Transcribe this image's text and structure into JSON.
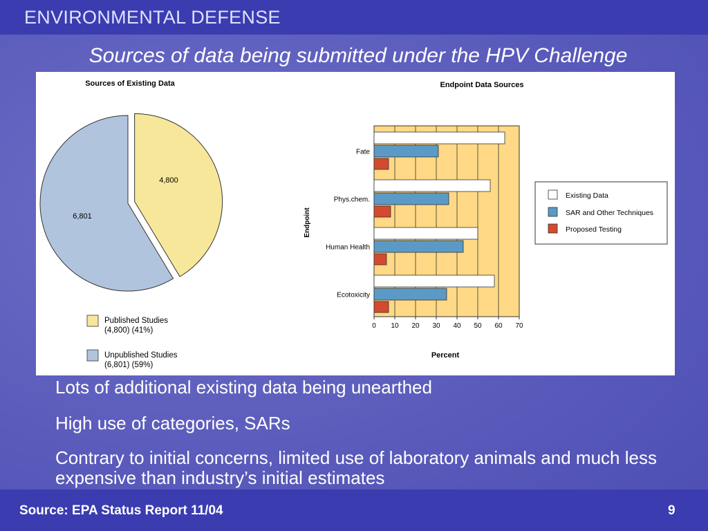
{
  "header": {
    "org": "ENVIRONMENTAL DEFENSE"
  },
  "slide": {
    "title": "Sources of data being submitted under the HPV Challenge"
  },
  "colors": {
    "published": "#f7e79a",
    "unpublished": "#b0c4de",
    "existing": "#ffffff",
    "sar": "#5b9ac6",
    "proposed": "#d44a2f",
    "plot_bg": "#ffd985"
  },
  "chart_data": [
    {
      "type": "pie",
      "title": "Sources of Existing Data",
      "slices": [
        {
          "label": "4,800",
          "value": 4800,
          "color": "#f7e79a"
        },
        {
          "label": "6,801",
          "value": 6801,
          "color": "#b0c4de"
        }
      ],
      "legend": [
        {
          "line1": "Published Studies",
          "line2": "(4,800) (41%)",
          "color": "#f7e79a"
        },
        {
          "line1": "Unpublished Studies",
          "line2": "(6,801) (59%)",
          "color": "#b0c4de"
        }
      ],
      "legend_position": "bottom"
    },
    {
      "type": "bar",
      "orientation": "horizontal",
      "title": "Endpoint Data Sources",
      "xlabel": "Percent",
      "ylabel": "Endpoint",
      "xlim": [
        0,
        70
      ],
      "xticks": [
        "0",
        "10",
        "20",
        "30",
        "40",
        "50",
        "60",
        "70"
      ],
      "categories": [
        "Fate",
        "Phys.chem.",
        "Human Health",
        "Ecotoxicity"
      ],
      "series": [
        {
          "name": "Existing Data",
          "values": [
            63,
            56,
            50,
            58
          ],
          "color": "#ffffff"
        },
        {
          "name": "SAR and Other Techniques",
          "values": [
            31,
            36,
            43,
            35
          ],
          "color": "#5b9ac6"
        },
        {
          "name": "Proposed Testing",
          "values": [
            7,
            8,
            6,
            7
          ],
          "color": "#d44a2f"
        }
      ],
      "grid": true,
      "legend_position": "right"
    }
  ],
  "bullets": [
    "Lots of additional existing data being unearthed",
    "High use of categories, SARs",
    "Contrary to initial concerns, limited use of laboratory animals and much less expensive than industry’s initial estimates"
  ],
  "footer": {
    "source": "Source:  EPA Status Report 11/04",
    "page": "9"
  }
}
